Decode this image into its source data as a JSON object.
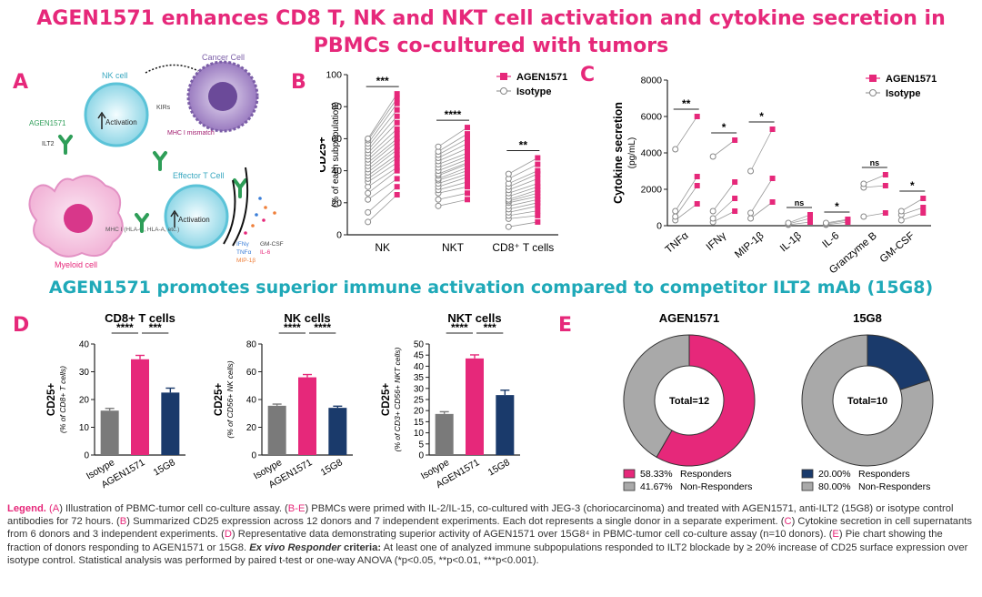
{
  "header": {
    "title_line1": "AGEN1571 enhances CD8 T, NK and NKT cell activation and cytokine secretion in",
    "title_line2": "PBMCs co-cultured with tumors",
    "subtitle": "AGEN1571 promotes superior immune activation compared to competitor ILT2 mAb (15G8)"
  },
  "panels": {
    "a": "A",
    "b": "B",
    "c": "C",
    "d": "D",
    "e": "E"
  },
  "colors": {
    "pink": "#e6287a",
    "teal": "#1fa9b8",
    "gray": "#7a7a7a",
    "navy": "#1a3a6b",
    "lightgray": "#a9a9a9"
  },
  "diagram": {
    "nk_cell": "NK cell",
    "activation": "Activation",
    "kirs": "KIRs",
    "cancer_cell": "Cancer Cell",
    "mhc_mismatch": "MHC I mismatch",
    "agen1571": "AGEN1571",
    "ilt2": "ILT2",
    "effector_t_cell": "Effector T Cell",
    "myeloid_cell": "Myeloid cell",
    "mhc_i": "MHC I (HLA-G, HLA-A, etc.)",
    "cytokines_left": [
      "IFNγ",
      "TNFα",
      "MIP-1β"
    ],
    "cytokines_right": [
      "GM-CSF",
      "IL-6"
    ]
  },
  "chart_data": [
    {
      "id": "B",
      "type": "scatter",
      "ylabel": "CD25+",
      "ylabel2": "(% of each subpopulation)",
      "ylim": [
        0,
        100
      ],
      "yticks": [
        0,
        20,
        40,
        60,
        80,
        100
      ],
      "categories": [
        "NK",
        "NKT",
        "CD8⁺ T cells"
      ],
      "legend": [
        {
          "name": "AGEN1571",
          "marker": "square"
        },
        {
          "name": "Isotype",
          "marker": "circle"
        }
      ],
      "significance": [
        "***",
        "****",
        "**"
      ],
      "paired": [
        {
          "isotype": [
            8,
            14,
            22,
            26,
            30,
            33,
            35,
            37,
            39,
            41,
            43,
            45,
            47,
            49,
            51,
            53,
            55,
            57,
            59,
            60
          ],
          "agen1571": [
            25,
            30,
            35,
            40,
            42,
            45,
            48,
            50,
            53,
            55,
            58,
            60,
            63,
            66,
            70,
            74,
            78,
            82,
            85,
            88
          ]
        },
        {
          "isotype": [
            18,
            22,
            26,
            28,
            30,
            32,
            34,
            35,
            37,
            38,
            40,
            42,
            44,
            46,
            48,
            50,
            52,
            55
          ],
          "agen1571": [
            22,
            26,
            30,
            33,
            36,
            38,
            40,
            42,
            44,
            45,
            47,
            49,
            51,
            54,
            57,
            60,
            63,
            67
          ]
        },
        {
          "isotype": [
            5,
            10,
            12,
            14,
            16,
            18,
            20,
            21,
            22,
            24,
            26,
            28,
            30,
            32,
            35,
            38
          ],
          "agen1571": [
            8,
            12,
            15,
            18,
            20,
            22,
            24,
            26,
            28,
            30,
            32,
            35,
            38,
            40,
            44,
            48
          ]
        }
      ]
    },
    {
      "id": "C",
      "type": "scatter",
      "ylabel": "Cytokine secretion",
      "ylabel2": "(pg/mL)",
      "ylim": [
        0,
        8000
      ],
      "yticks": [
        0,
        2000,
        4000,
        6000,
        8000
      ],
      "categories": [
        "TNFα",
        "IFNγ",
        "MIP-1β",
        "IL-1β",
        "IL-6",
        "Granzyme B",
        "GM-CSF"
      ],
      "legend": [
        {
          "name": "AGEN1571",
          "marker": "square"
        },
        {
          "name": "Isotype",
          "marker": "circle"
        }
      ],
      "significance": [
        "**",
        "*",
        "*",
        "ns",
        "*",
        "ns",
        "*"
      ],
      "paired": [
        {
          "isotype": [
            300,
            500,
            800,
            4200
          ],
          "agen1571": [
            1200,
            2200,
            2700,
            6000
          ]
        },
        {
          "isotype": [
            200,
            400,
            800,
            3800
          ],
          "agen1571": [
            800,
            1500,
            2400,
            4700
          ]
        },
        {
          "isotype": [
            400,
            700,
            3000
          ],
          "agen1571": [
            1300,
            2600,
            5300
          ]
        },
        {
          "isotype": [
            50,
            100,
            150
          ],
          "agen1571": [
            200,
            400,
            600
          ]
        },
        {
          "isotype": [
            50,
            100,
            150
          ],
          "agen1571": [
            200,
            300,
            350
          ]
        },
        {
          "isotype": [
            500,
            2100,
            2300
          ],
          "agen1571": [
            700,
            2200,
            2800
          ]
        },
        {
          "isotype": [
            300,
            600,
            800
          ],
          "agen1571": [
            700,
            1000,
            1500
          ]
        }
      ]
    },
    {
      "id": "D1",
      "type": "bar",
      "title": "CD8+ T cells",
      "ylabel": "CD25+",
      "ylabel2": "(% of CD8+ T cells)",
      "ylim": [
        0,
        40
      ],
      "yticks": [
        0,
        10,
        20,
        30,
        40
      ],
      "categories": [
        "Isotype",
        "AGEN1571",
        "15G8"
      ],
      "values": [
        16,
        34.5,
        22.5
      ],
      "errors": [
        0.8,
        1.4,
        1.6
      ],
      "significance": [
        "****",
        "***"
      ]
    },
    {
      "id": "D2",
      "type": "bar",
      "title": "NK cells",
      "ylabel": "CD25+",
      "ylabel2": "(% of CD56+ NK cells)",
      "ylim": [
        0,
        80
      ],
      "yticks": [
        0,
        20,
        40,
        60,
        80
      ],
      "categories": [
        "Isotype",
        "AGEN1571",
        "15G8"
      ],
      "values": [
        35.5,
        56,
        34
      ],
      "errors": [
        1.2,
        2,
        1.2
      ],
      "significance": [
        "****",
        "****"
      ]
    },
    {
      "id": "D3",
      "type": "bar",
      "title": "NKT cells",
      "ylabel": "CD25+",
      "ylabel2": "(% of CD3+ CD56+ NKT cells)",
      "ylim": [
        0,
        50
      ],
      "yticks": [
        0,
        5,
        10,
        15,
        20,
        25,
        30,
        35,
        40,
        45,
        50
      ],
      "categories": [
        "Isotype",
        "AGEN1571",
        "15G8"
      ],
      "values": [
        18.5,
        43.5,
        27
      ],
      "errors": [
        1,
        1.6,
        2.2
      ],
      "significance": [
        "****",
        "***"
      ]
    },
    {
      "id": "E1",
      "type": "pie",
      "title": "AGEN1571",
      "center_label": "Total=12",
      "slices": [
        {
          "name": "Responders",
          "pct": "58.33%",
          "value": 58.33
        },
        {
          "name": "Non-Responders",
          "pct": "41.67%",
          "value": 41.67
        }
      ]
    },
    {
      "id": "E2",
      "type": "pie",
      "title": "15G8",
      "center_label": "Total=10",
      "slices": [
        {
          "name": "Responders",
          "pct": "20.00%",
          "value": 20
        },
        {
          "name": "Non-Responders",
          "pct": "80.00%",
          "value": 80
        }
      ]
    }
  ],
  "legend_text": {
    "l1a": "Legend.",
    "l1b": " (",
    "l1c": "A",
    "l1d": ") Illustration of PBMC-tumor cell co-culture assay. (",
    "l1e": "B-E",
    "l1f": ") PBMCs were primed with IL-2/IL-15, co-cultured with JEG-3 (choriocarcinoma) and treated with AGEN1571, anti-ILT2 (15G8) or isotype control antibodies for 72 hours. (",
    "l1g": "B",
    "l1h": ") Summarized CD25 expression across 12 donors and 7 independent experiments. Each dot represents a single donor in a separate experiment. (",
    "l1i": "C",
    "l1j": ") Cytokine secretion in cell supernatants from 6 donors and 3 independent experiments. (",
    "l1k": "D",
    "l1l": ") Representative data demonstrating superior activity of AGEN1571 over 15G8⁴ in PBMC-tumor cell co-culture assay (n=10 donors). (",
    "l1m": "E",
    "l1n": ") Pie chart showing the fraction of donors responding to AGEN1571 or 15G8. ",
    "l1o": "Ex vivo Responder",
    "l1p": " criteria:",
    "l1q": " At least one of analyzed immune subpopulations responded to ILT2 blockade by ≥ 20% increase of CD25 surface expression over isotype control. Statistical analysis was performed by paired t-test or one-way ANOVA (*p<0.05, **p<0.01, ***p<0.001)."
  }
}
